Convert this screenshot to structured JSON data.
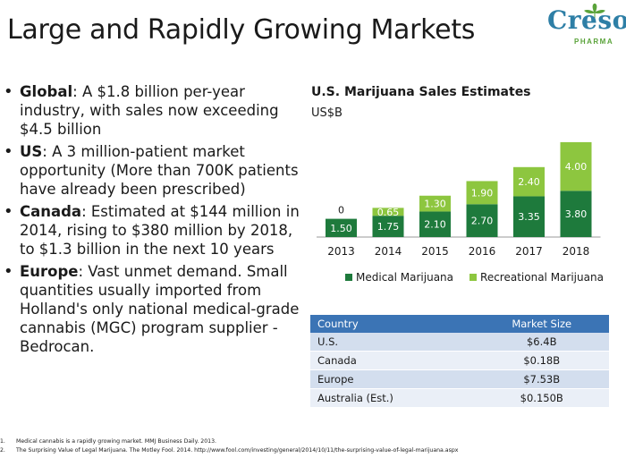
{
  "slide": {
    "title": "Large and Rapidly Growing Markets"
  },
  "logo": {
    "text": "Creso",
    "subtext": "PHARMA"
  },
  "bullets": [
    {
      "label": "Global",
      "text": ":  A $1.8 billion per-year industry, with sales now exceeding $4.5 billion"
    },
    {
      "label": "US",
      "text": ":  A  3 million-patient market opportunity (More than 700K patients have already been prescribed)"
    },
    {
      "label": "Canada",
      "text": ":  Estimated at $144 million in 2014, rising to $380 million by 2018, to $1.3 billion in the next 10 years"
    },
    {
      "label": "Europe",
      "text": ": Vast unmet demand. Small quantities usually imported from Holland's only national medical-grade cannabis (MGC) program supplier - Bedrocan."
    }
  ],
  "chart_data": {
    "type": "bar",
    "stacked": true,
    "title": "U.S. Marijuana Sales Estimates",
    "subtitle": "US$B",
    "categories": [
      "2013",
      "2014",
      "2015",
      "2016",
      "2017",
      "2018"
    ],
    "series": [
      {
        "name": "Medical Marijuana",
        "values": [
          1.5,
          1.75,
          2.1,
          2.7,
          3.35,
          3.8
        ],
        "labels": [
          "1.50",
          "1.75",
          "2.10",
          "2.70",
          "3.35",
          "3.80"
        ],
        "color": "#1e7a3c"
      },
      {
        "name": "Recreational Marijuana",
        "values": [
          0,
          0.65,
          1.3,
          1.9,
          2.4,
          4.0
        ],
        "labels": [
          "0",
          "0.65",
          "1.30",
          "1.90",
          "2.40",
          "4.00"
        ],
        "color": "#8dc63f"
      }
    ],
    "ylim": [
      0,
      8
    ],
    "grid": false,
    "legend": "bottom"
  },
  "market_table": {
    "headers": [
      "Country",
      "Market Size"
    ],
    "rows": [
      [
        "U.S.",
        "$6.4B"
      ],
      [
        "Canada",
        "$0.18B"
      ],
      [
        "Europe",
        "$7.53B"
      ],
      [
        "Australia (Est.)",
        "$0.150B"
      ]
    ],
    "header_color": "#3b74b5"
  },
  "footnotes": [
    {
      "num": "1.",
      "text": "Medical cannabis is a rapidly growing market. MMJ Business Daily. 2013."
    },
    {
      "num": "2.",
      "text": "The Surprising Value of Legal Marijuana. The Motley Fool. 2014. http://www.fool.com/investing/general/2014/10/11/the-surprising-value-of-legal-marijuana.aspx"
    }
  ]
}
